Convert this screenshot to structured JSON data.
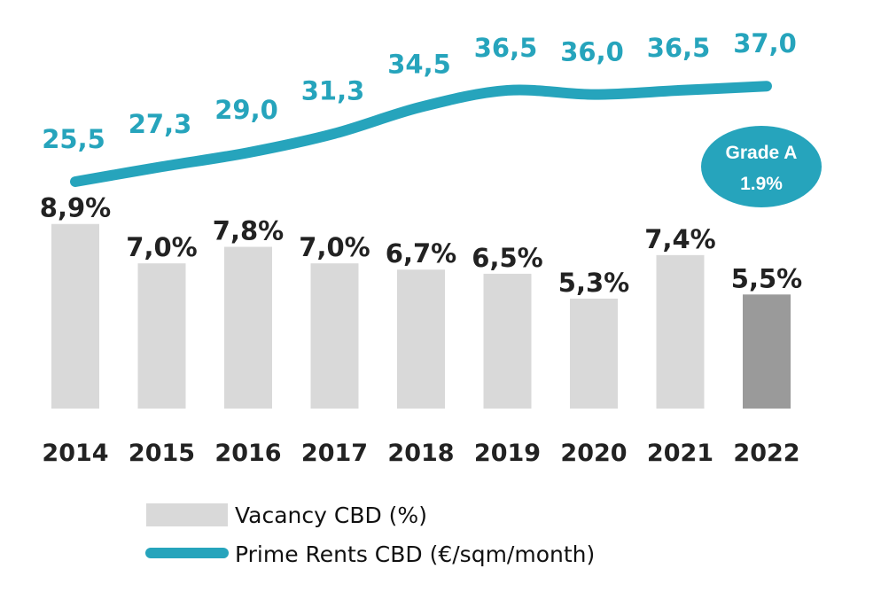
{
  "chart_data": {
    "type": "bar+line",
    "categories": [
      "2014",
      "2015",
      "2016",
      "2017",
      "2018",
      "2019",
      "2020",
      "2021",
      "2022"
    ],
    "series": [
      {
        "name": "Vacancy CBD (%)",
        "type": "bar",
        "values": [
          8.9,
          7.0,
          7.8,
          7.0,
          6.7,
          6.5,
          5.3,
          7.4,
          5.5
        ],
        "labels": [
          "8,9%",
          "7,0%",
          "7,8%",
          "7,0%",
          "6,7%",
          "6,5%",
          "5,3%",
          "7,4%",
          "5,5%"
        ],
        "color": "#d9d9d9",
        "highlight_color": "#9a9a9a",
        "highlight_category": "2022"
      },
      {
        "name": "Prime Rents CBD (€/sqm/month)",
        "type": "line",
        "values": [
          25.5,
          27.3,
          29.0,
          31.3,
          34.5,
          36.5,
          36.0,
          36.5,
          37.0
        ],
        "labels": [
          "25,5",
          "27,3",
          "29,0",
          "31,3",
          "34,5",
          "36,5",
          "36,0",
          "36,5",
          "37,0"
        ],
        "color": "#26a4bc"
      }
    ],
    "annotation": {
      "line1": "Grade A",
      "line2": "1.9%",
      "color": "#26a4bc"
    },
    "legend": {
      "placement": "bottom-center",
      "items": [
        "Vacancy CBD (%)",
        "Prime Rents CBD (€/sqm/month)"
      ]
    },
    "vacancy_axis_range": [
      0,
      10
    ],
    "rent_axis_range": [
      20,
      38
    ],
    "grid": false
  }
}
